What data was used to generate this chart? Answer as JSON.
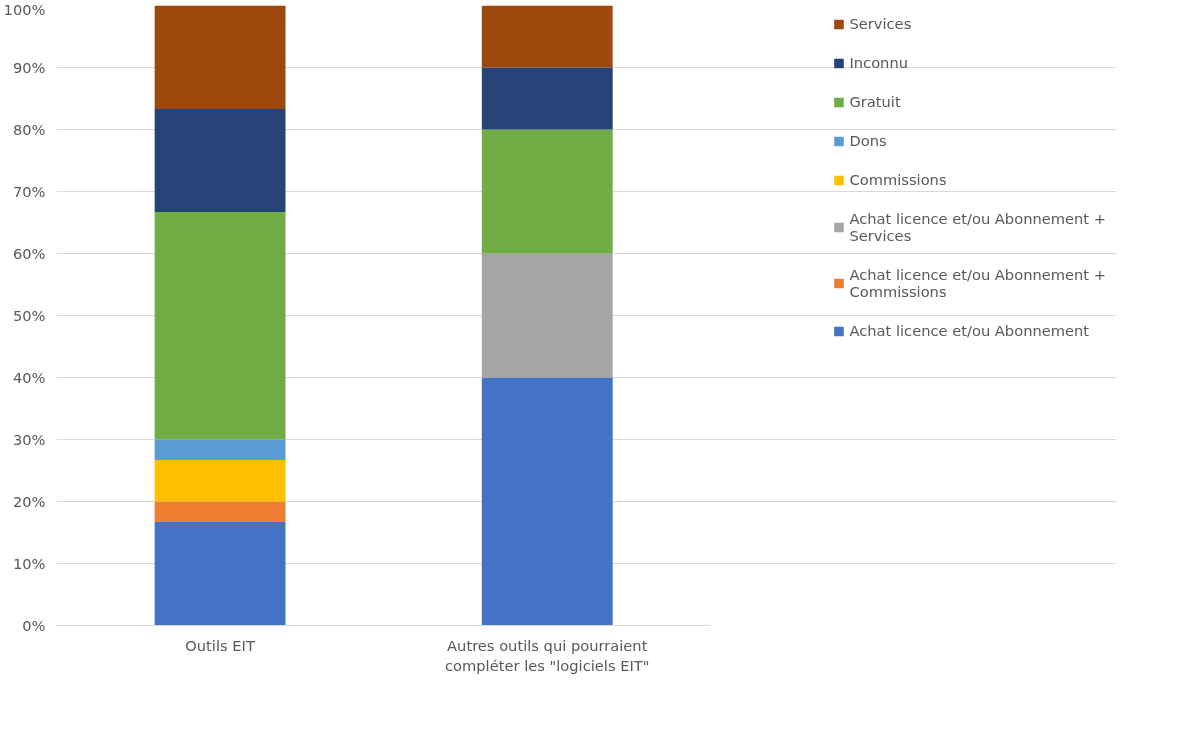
{
  "chart_data": {
    "type": "bar",
    "stacked": true,
    "categories": [
      "Outils EIT",
      "Autres outils qui pourraient compléter les \"logiciels EIT\""
    ],
    "series": [
      {
        "name": "Achat licence et/ou Abonnement",
        "color": "#4472c4",
        "values": [
          16.7,
          40
        ]
      },
      {
        "name": "Achat licence et/ou Abonnement + Commissions",
        "color": "#ed7d31",
        "values": [
          3.3,
          0
        ]
      },
      {
        "name": "Achat licence et/ou Abonnement + Services",
        "color": "#a5a5a5",
        "values": [
          0,
          20
        ]
      },
      {
        "name": "Commissions",
        "color": "#ffc000",
        "values": [
          6.7,
          0
        ]
      },
      {
        "name": "Dons",
        "color": "#5b9bd5",
        "values": [
          3.3,
          0
        ]
      },
      {
        "name": "Gratuit",
        "color": "#70ad47",
        "values": [
          36.7,
          20
        ]
      },
      {
        "name": "Inconnu",
        "color": "#264478",
        "values": [
          16.6,
          10
        ]
      },
      {
        "name": "Services",
        "color": "#9e480e",
        "values": [
          16.7,
          10
        ]
      }
    ],
    "ylim": [
      0,
      100
    ],
    "yticks": [
      {
        "value": 0,
        "label": "0%"
      },
      {
        "value": 10,
        "label": "10%"
      },
      {
        "value": 20,
        "label": "20%"
      },
      {
        "value": 30,
        "label": "30%"
      },
      {
        "value": 40,
        "label": "40%"
      },
      {
        "value": 50,
        "label": "50%"
      },
      {
        "value": 60,
        "label": "60%"
      },
      {
        "value": 70,
        "label": "70%"
      },
      {
        "value": 80,
        "label": "80%"
      },
      {
        "value": 90,
        "label": "90%"
      },
      {
        "value": 100,
        "label": "100%"
      }
    ],
    "grid": "y",
    "legend": "right"
  }
}
